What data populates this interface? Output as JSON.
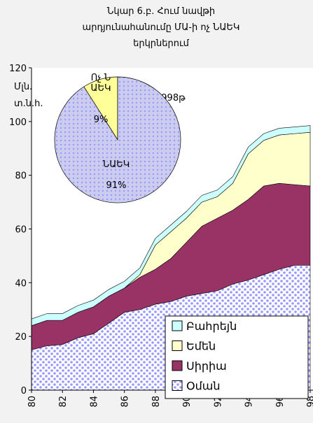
{
  "chart_data": {
    "type": "stacked_area",
    "title": "Նկար 6.բ. Հում նավթի արդյունահանումը ՄԱ-ի ոչ ՆԱԵԿ երկրներում",
    "y_label": "Մլն. տ.ն.հ.",
    "annotation": "1998թ",
    "x": [
      80,
      81,
      82,
      83,
      84,
      85,
      86,
      87,
      88,
      89,
      90,
      91,
      92,
      93,
      94,
      95,
      96,
      97,
      98
    ],
    "xlim": [
      80,
      98
    ],
    "xticks": [
      80,
      82,
      84,
      86,
      88,
      90,
      92,
      94,
      96,
      98
    ],
    "ylim": [
      0,
      120
    ],
    "yticks": [
      0,
      20,
      40,
      60,
      80,
      100,
      120
    ],
    "legend": "lower right",
    "series": [
      {
        "name": "Օման",
        "color": "#9999ff",
        "values": [
          15,
          16.5,
          17,
          19.5,
          21,
          25,
          29,
          30,
          32,
          33,
          35,
          36,
          37,
          39.5,
          41,
          43,
          45,
          46.5,
          46.5
        ]
      },
      {
        "name": "Սիրիա",
        "color": "#993366",
        "values": [
          9,
          9.5,
          9,
          9.5,
          10,
          10,
          9,
          12,
          13,
          16,
          20,
          25,
          27,
          27.5,
          30,
          33,
          32,
          30,
          29.5
        ]
      },
      {
        "name": "Եմեն",
        "color": "#ffffcc",
        "values": [
          0,
          0,
          0,
          0,
          0,
          0,
          0,
          1,
          9,
          10,
          9,
          9,
          8,
          10,
          17,
          17,
          18,
          19,
          20
        ]
      },
      {
        "name": "Բահրեյն",
        "color": "#ccffff",
        "values": [
          2.5,
          2.5,
          2.5,
          2.5,
          2.5,
          2.5,
          2.5,
          2.5,
          2.5,
          2.5,
          2.5,
          2.5,
          2.5,
          2.5,
          2.5,
          2.5,
          2.5,
          2.5,
          2.5
        ]
      }
    ],
    "inset_pie": {
      "type": "pie",
      "categories": [
        "Ոչ ՆԱԵԿ",
        "ՆԱԵԿ"
      ],
      "values": [
        9,
        91
      ],
      "value_labels": [
        "9%",
        "91%"
      ],
      "colors": [
        "#ffff99",
        "#ccccee"
      ]
    }
  }
}
